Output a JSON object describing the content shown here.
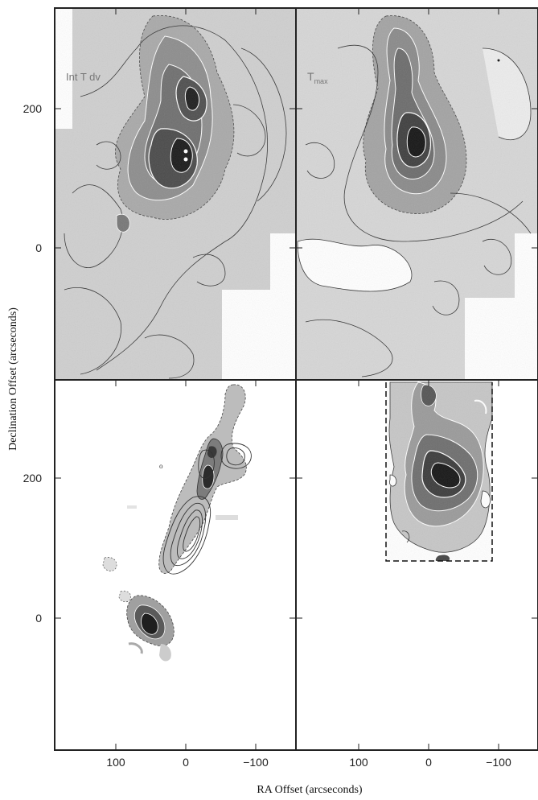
{
  "figure": {
    "y_axis_label": "Declination Offset (arcseconds)",
    "x_axis_label": "RA Offset (arcseconds)",
    "panels": [
      {
        "id": "top-left",
        "label": "Int T dv"
      },
      {
        "id": "top-right",
        "label": "T",
        "label_sub": "max"
      },
      {
        "id": "bottom-left",
        "label": ""
      },
      {
        "id": "bottom-right",
        "label": ""
      }
    ],
    "y_ticks_top": [
      "200",
      "0"
    ],
    "y_ticks_bottom": [
      "200",
      "0"
    ],
    "x_ticks_left": [
      "100",
      "0",
      "−100"
    ],
    "x_ticks_right": [
      "100",
      "0",
      "−100"
    ]
  }
}
